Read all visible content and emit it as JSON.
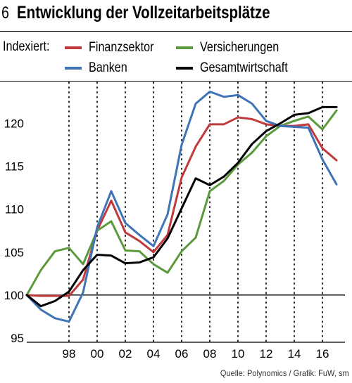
{
  "header": {
    "number": "6",
    "title": "Entwicklung der Vollzeitarbeitsplätze"
  },
  "legend": {
    "prefix": "Indexiert:",
    "items": [
      {
        "name": "Finanzsektor",
        "color": "#c0393b"
      },
      {
        "name": "Versicherungen",
        "color": "#5a9a3c"
      },
      {
        "name": "Banken",
        "color": "#3f73b8"
      },
      {
        "name": "Gesamtwirtschaft",
        "color": "#000000"
      }
    ]
  },
  "source": "Quelle: Polynomics / Grafik: FuW, sm",
  "chart_data": {
    "type": "line",
    "title": "Entwicklung der Vollzeitarbeitsplätze",
    "xlabel": "",
    "ylabel": "",
    "x": [
      1995,
      1996,
      1997,
      1998,
      1999,
      2000,
      2001,
      2002,
      2003,
      2004,
      2005,
      2006,
      2007,
      2008,
      2009,
      2010,
      2011,
      2012,
      2013,
      2014,
      2015,
      2016,
      2017
    ],
    "xticks": [
      {
        "value": 1998,
        "label": "98"
      },
      {
        "value": 2000,
        "label": "00"
      },
      {
        "value": 2002,
        "label": "02"
      },
      {
        "value": 2004,
        "label": "04"
      },
      {
        "value": 2006,
        "label": "06"
      },
      {
        "value": 2008,
        "label": "08"
      },
      {
        "value": 2010,
        "label": "10"
      },
      {
        "value": 2012,
        "label": "12"
      },
      {
        "value": 2014,
        "label": "14"
      },
      {
        "value": 2016,
        "label": "16"
      }
    ],
    "yticks": [
      95,
      100,
      105,
      110,
      115,
      120
    ],
    "xlim": [
      1995,
      2017.6
    ],
    "ylim": [
      94.5,
      124.8
    ],
    "reference_line": 100,
    "grid": "dotted vertical at every 2 years",
    "series": [
      {
        "name": "Finanzsektor",
        "color": "#c0393b",
        "values": [
          100.0,
          99.9,
          99.9,
          99.9,
          101.8,
          107.5,
          111.0,
          107.3,
          106.3,
          105.0,
          107.0,
          113.7,
          117.3,
          119.9,
          119.9,
          120.7,
          120.5,
          119.9,
          119.7,
          119.7,
          119.9,
          117.1,
          115.7
        ]
      },
      {
        "name": "Versicherungen",
        "color": "#5a9a3c",
        "values": [
          100.0,
          102.9,
          105.1,
          105.5,
          103.6,
          107.5,
          108.6,
          105.2,
          105.1,
          103.6,
          102.6,
          105.1,
          106.7,
          112.1,
          113.3,
          115.2,
          116.6,
          118.5,
          119.7,
          120.3,
          120.8,
          119.3,
          121.5
        ]
      },
      {
        "name": "Banken",
        "color": "#3f73b8",
        "values": [
          100.0,
          98.3,
          97.3,
          96.9,
          100.3,
          107.9,
          112.1,
          108.4,
          107.0,
          105.7,
          109.4,
          117.5,
          122.3,
          123.7,
          123.1,
          123.3,
          122.3,
          120.3,
          119.7,
          119.6,
          119.5,
          115.8,
          112.9
        ]
      },
      {
        "name": "Gesamtwirtschaft",
        "color": "#000000",
        "values": [
          100.0,
          98.7,
          99.3,
          100.4,
          102.9,
          104.7,
          104.6,
          103.7,
          103.8,
          104.4,
          106.6,
          110.1,
          113.6,
          112.8,
          113.8,
          115.4,
          117.6,
          119.1,
          120.0,
          121.0,
          121.2,
          121.9,
          121.9
        ]
      }
    ]
  }
}
